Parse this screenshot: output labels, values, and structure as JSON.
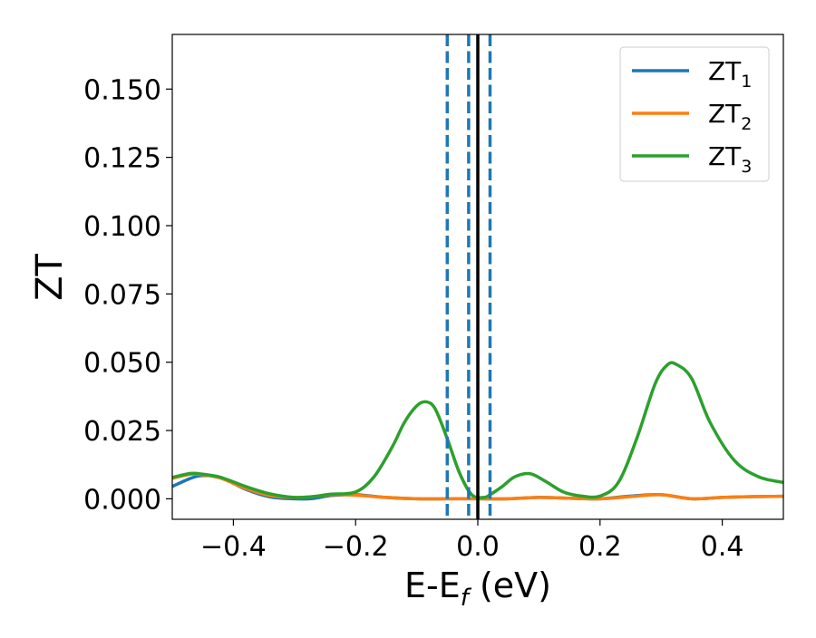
{
  "chart_data": {
    "type": "line",
    "title": "",
    "xlabel_main": "E-E",
    "xlabel_sub": "f",
    "xlabel_tail": " (eV)",
    "ylabel": "ZT",
    "xlim": [
      -0.5,
      0.5
    ],
    "ylim": [
      -0.0075,
      0.17
    ],
    "xticks": [
      -0.4,
      -0.2,
      0.0,
      0.2,
      0.4
    ],
    "xtick_labels": [
      "−0.4",
      "−0.2",
      "0.0",
      "0.2",
      "0.4"
    ],
    "yticks": [
      0.0,
      0.025,
      0.05,
      0.075,
      0.1,
      0.125,
      0.15
    ],
    "ytick_labels": [
      "0.000",
      "0.025",
      "0.050",
      "0.075",
      "0.100",
      "0.125",
      "0.150"
    ],
    "grid": false,
    "legend_position": "top-right",
    "vlines": [
      {
        "x": -0.05,
        "style": "dashed",
        "color": "#1f77b4"
      },
      {
        "x": -0.015,
        "style": "dashed",
        "color": "#1f77b4"
      },
      {
        "x": 0.0,
        "style": "solid",
        "color": "#000000"
      },
      {
        "x": 0.02,
        "style": "dashed",
        "color": "#1f77b4"
      }
    ],
    "series": [
      {
        "name_main": "ZT",
        "name_sub": "1",
        "color": "#1f77b4",
        "x": [
          -0.5,
          -0.47,
          -0.45,
          -0.42,
          -0.38,
          -0.34,
          -0.3,
          -0.27,
          -0.24,
          -0.2,
          -0.15,
          -0.1,
          -0.05,
          0.0,
          0.05,
          0.1,
          0.15,
          0.2,
          0.25,
          0.3,
          0.35,
          0.4,
          0.45,
          0.5
        ],
        "y": [
          0.0045,
          0.0075,
          0.0085,
          0.0078,
          0.0035,
          0.0007,
          0.0,
          0.0001,
          0.0012,
          0.0015,
          0.0005,
          0.0,
          0.0,
          0.0,
          0.0,
          0.0005,
          0.0002,
          0.0,
          0.001,
          0.0015,
          0.0,
          0.0005,
          0.0008,
          0.0009
        ]
      },
      {
        "name_main": "ZT",
        "name_sub": "2",
        "color": "#ff7f0e",
        "x": [
          -0.5,
          -0.47,
          -0.45,
          -0.42,
          -0.38,
          -0.34,
          -0.3,
          -0.27,
          -0.24,
          -0.2,
          -0.15,
          -0.1,
          -0.05,
          0.0,
          0.05,
          0.1,
          0.15,
          0.2,
          0.25,
          0.3,
          0.35,
          0.4,
          0.45,
          0.5
        ],
        "y": [
          0.0075,
          0.009,
          0.0088,
          0.0075,
          0.0038,
          0.0012,
          0.0005,
          0.0008,
          0.0015,
          0.0013,
          0.0005,
          0.0,
          0.0,
          0.0,
          0.0,
          0.0005,
          0.0002,
          0.0,
          0.0008,
          0.0015,
          0.0,
          0.0005,
          0.0008,
          0.0009
        ]
      },
      {
        "name_main": "ZT",
        "name_sub": "3",
        "color": "#2ca02c",
        "x": [
          -0.5,
          -0.47,
          -0.45,
          -0.42,
          -0.38,
          -0.34,
          -0.3,
          -0.27,
          -0.24,
          -0.2,
          -0.17,
          -0.14,
          -0.12,
          -0.1,
          -0.085,
          -0.07,
          -0.05,
          -0.03,
          -0.01,
          0.01,
          0.02,
          0.04,
          0.06,
          0.085,
          0.11,
          0.14,
          0.17,
          0.2,
          0.23,
          0.26,
          0.29,
          0.31,
          0.325,
          0.35,
          0.38,
          0.42,
          0.46,
          0.5
        ],
        "y": [
          0.0078,
          0.0093,
          0.009,
          0.0078,
          0.0045,
          0.0018,
          0.0005,
          0.0008,
          0.0017,
          0.0025,
          0.008,
          0.019,
          0.028,
          0.034,
          0.0355,
          0.033,
          0.022,
          0.0095,
          0.0015,
          0.0005,
          0.0015,
          0.0045,
          0.008,
          0.0092,
          0.0065,
          0.0025,
          0.001,
          0.001,
          0.006,
          0.022,
          0.042,
          0.049,
          0.0492,
          0.044,
          0.028,
          0.014,
          0.008,
          0.006
        ]
      }
    ]
  }
}
